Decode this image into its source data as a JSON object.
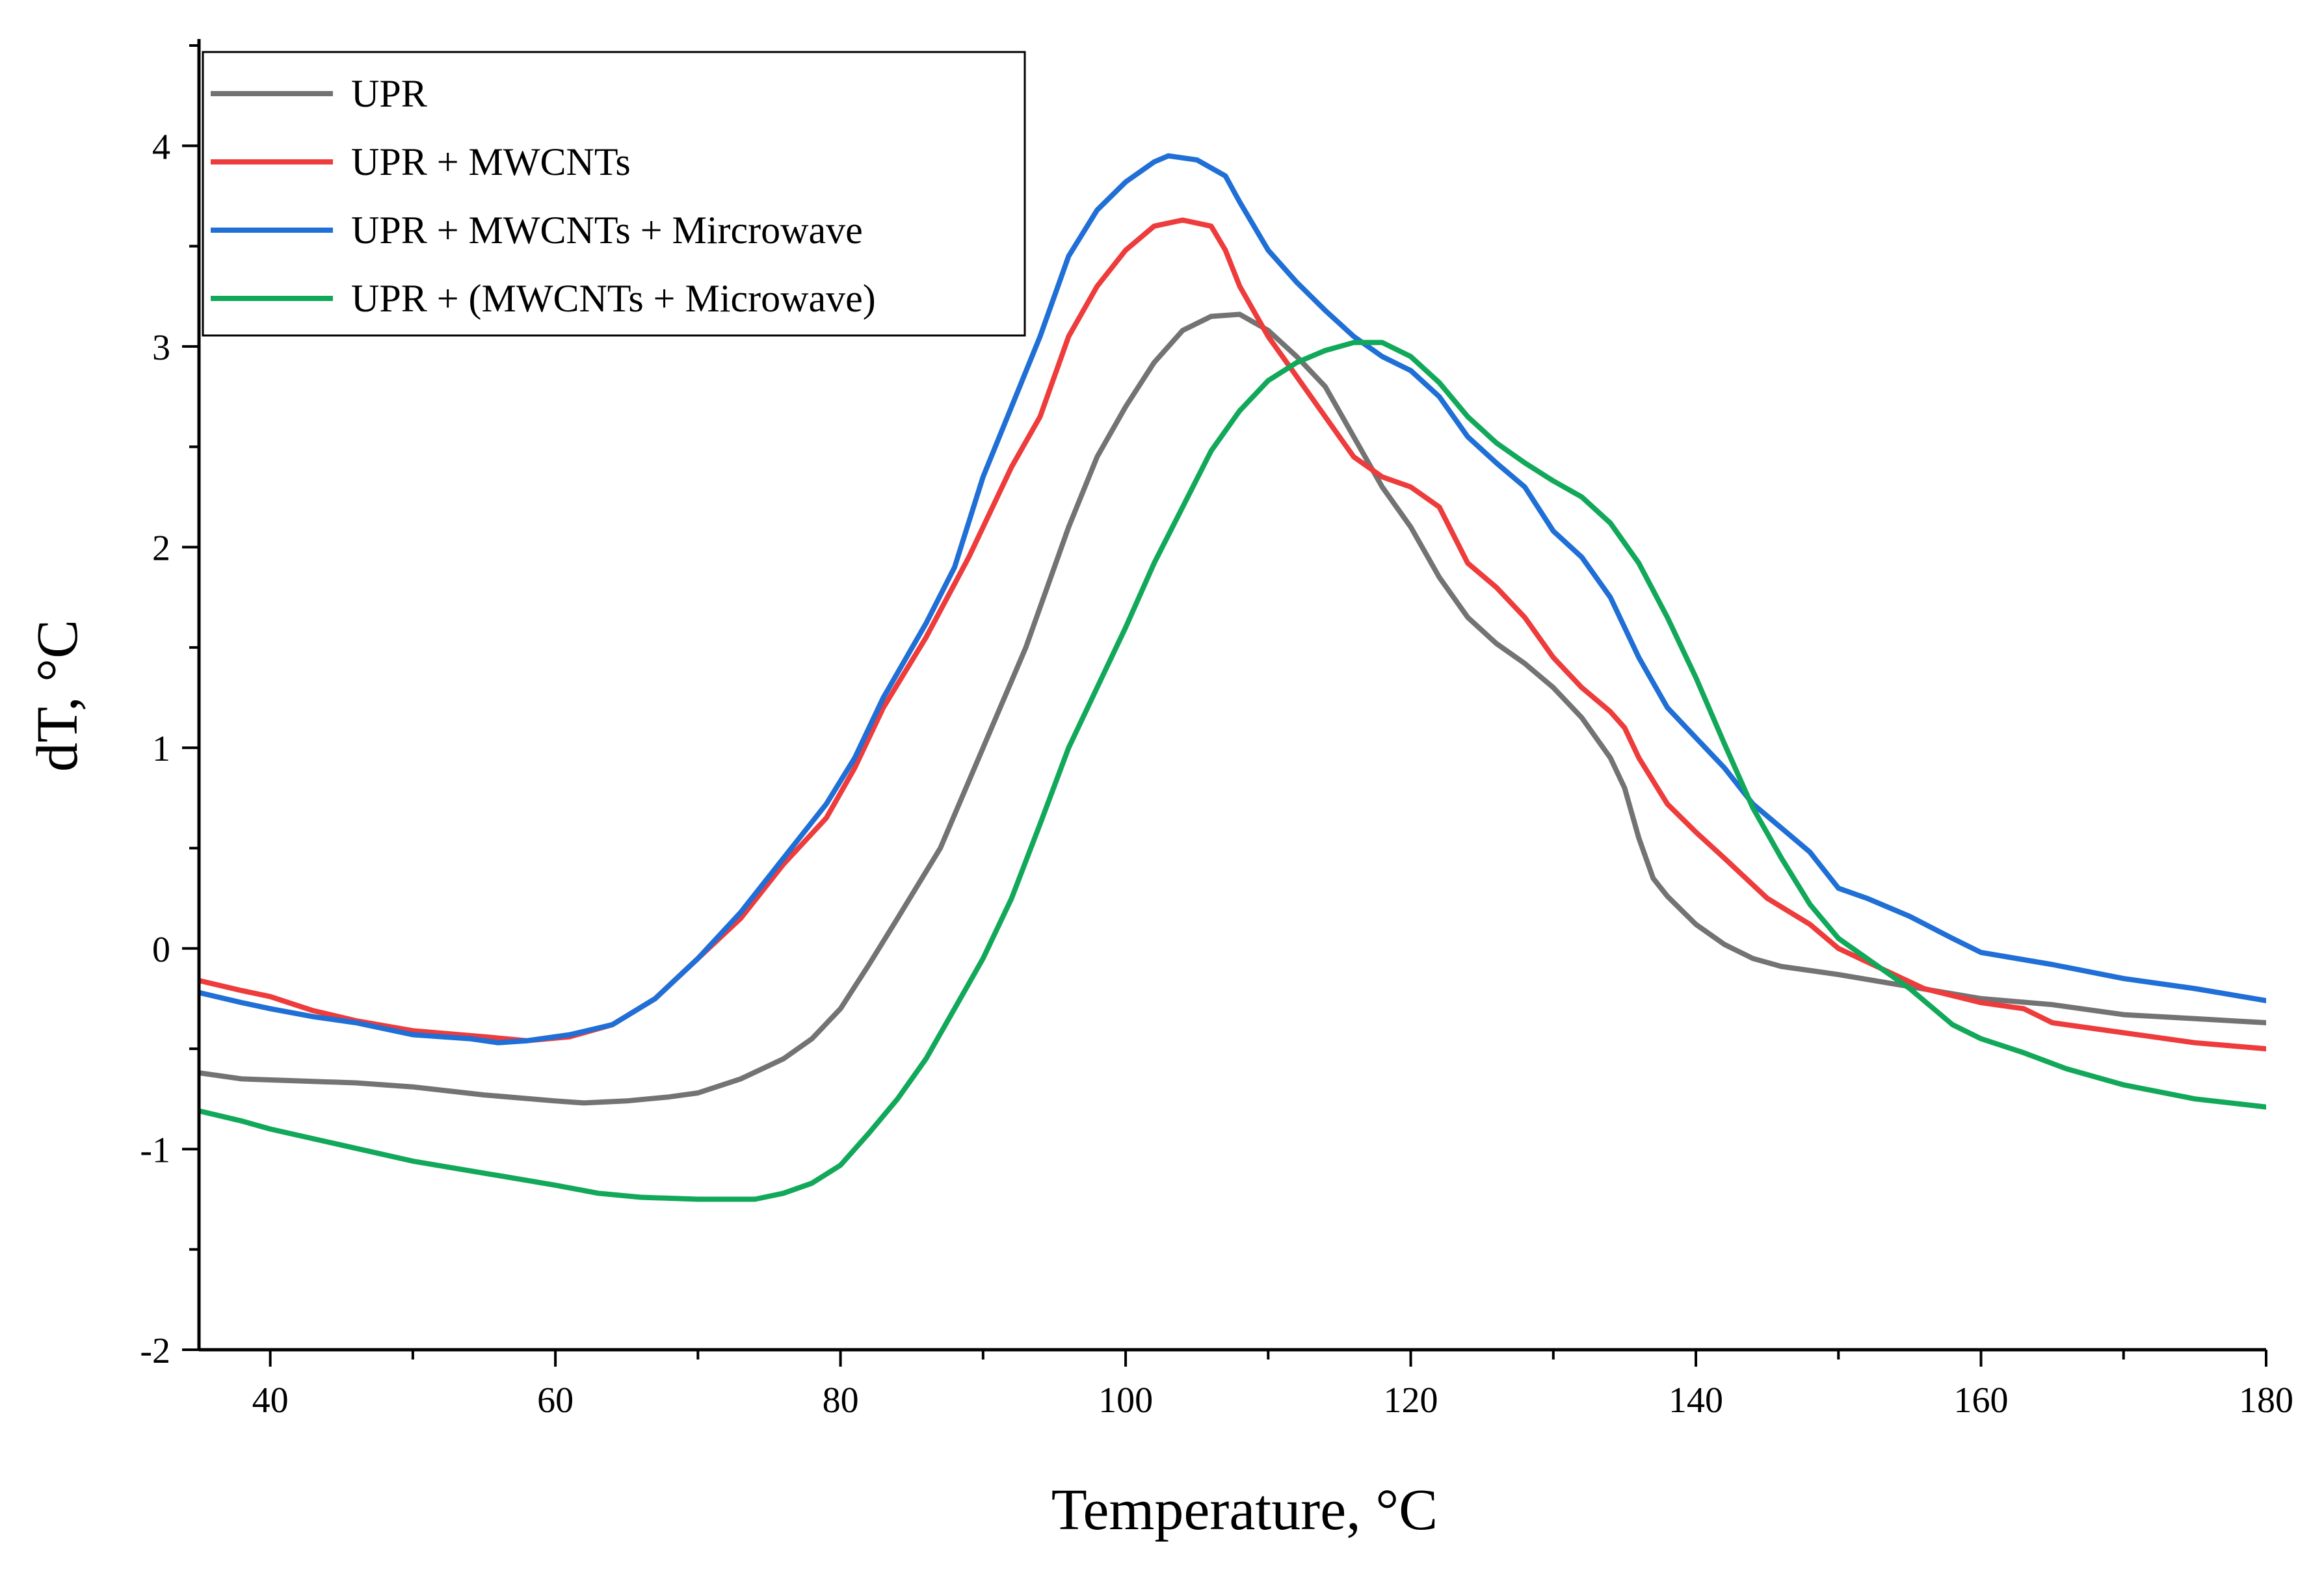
{
  "chart_data": {
    "type": "line",
    "title": "",
    "xlabel": "Temperature, °C",
    "ylabel": "dT, °C",
    "xlim": [
      35,
      180
    ],
    "ylim": [
      -2,
      4.5
    ],
    "xticks": [
      40,
      60,
      80,
      100,
      120,
      140,
      160,
      180
    ],
    "yticks": [
      -2,
      -1,
      0,
      1,
      2,
      3,
      4
    ],
    "legend_position": "top-left",
    "series": [
      {
        "name": "UPR",
        "color": "#737373",
        "points": [
          [
            35,
            -0.62
          ],
          [
            38,
            -0.65
          ],
          [
            42,
            -0.66
          ],
          [
            46,
            -0.67
          ],
          [
            50,
            -0.69
          ],
          [
            55,
            -0.73
          ],
          [
            60,
            -0.76
          ],
          [
            62,
            -0.77
          ],
          [
            65,
            -0.76
          ],
          [
            68,
            -0.74
          ],
          [
            70,
            -0.72
          ],
          [
            73,
            -0.65
          ],
          [
            76,
            -0.55
          ],
          [
            78,
            -0.45
          ],
          [
            80,
            -0.3
          ],
          [
            82,
            -0.08
          ],
          [
            84,
            0.15
          ],
          [
            87,
            0.5
          ],
          [
            90,
            1.0
          ],
          [
            93,
            1.5
          ],
          [
            96,
            2.1
          ],
          [
            98,
            2.45
          ],
          [
            100,
            2.7
          ],
          [
            102,
            2.92
          ],
          [
            104,
            3.08
          ],
          [
            106,
            3.15
          ],
          [
            108,
            3.16
          ],
          [
            110,
            3.08
          ],
          [
            112,
            2.95
          ],
          [
            114,
            2.8
          ],
          [
            116,
            2.55
          ],
          [
            118,
            2.3
          ],
          [
            120,
            2.1
          ],
          [
            122,
            1.85
          ],
          [
            124,
            1.65
          ],
          [
            126,
            1.52
          ],
          [
            128,
            1.42
          ],
          [
            130,
            1.3
          ],
          [
            132,
            1.15
          ],
          [
            134,
            0.95
          ],
          [
            135,
            0.8
          ],
          [
            136,
            0.55
          ],
          [
            137,
            0.35
          ],
          [
            138,
            0.26
          ],
          [
            140,
            0.12
          ],
          [
            142,
            0.02
          ],
          [
            144,
            -0.05
          ],
          [
            146,
            -0.09
          ],
          [
            150,
            -0.13
          ],
          [
            155,
            -0.19
          ],
          [
            160,
            -0.25
          ],
          [
            165,
            -0.28
          ],
          [
            170,
            -0.33
          ],
          [
            175,
            -0.35
          ],
          [
            180,
            -0.37
          ]
        ]
      },
      {
        "name": "UPR + MWCNTs",
        "color": "#ee3b3b",
        "points": [
          [
            35,
            -0.16
          ],
          [
            38,
            -0.21
          ],
          [
            40,
            -0.24
          ],
          [
            43,
            -0.31
          ],
          [
            46,
            -0.36
          ],
          [
            50,
            -0.41
          ],
          [
            55,
            -0.44
          ],
          [
            58,
            -0.46
          ],
          [
            61,
            -0.44
          ],
          [
            64,
            -0.38
          ],
          [
            67,
            -0.25
          ],
          [
            70,
            -0.05
          ],
          [
            73,
            0.15
          ],
          [
            76,
            0.42
          ],
          [
            79,
            0.65
          ],
          [
            81,
            0.9
          ],
          [
            83,
            1.2
          ],
          [
            86,
            1.55
          ],
          [
            89,
            1.95
          ],
          [
            92,
            2.4
          ],
          [
            94,
            2.65
          ],
          [
            96,
            3.05
          ],
          [
            98,
            3.3
          ],
          [
            100,
            3.48
          ],
          [
            102,
            3.6
          ],
          [
            104,
            3.63
          ],
          [
            106,
            3.6
          ],
          [
            107,
            3.48
          ],
          [
            108,
            3.3
          ],
          [
            110,
            3.05
          ],
          [
            112,
            2.85
          ],
          [
            114,
            2.65
          ],
          [
            116,
            2.45
          ],
          [
            118,
            2.35
          ],
          [
            120,
            2.3
          ],
          [
            122,
            2.2
          ],
          [
            124,
            1.92
          ],
          [
            126,
            1.8
          ],
          [
            128,
            1.65
          ],
          [
            130,
            1.45
          ],
          [
            132,
            1.3
          ],
          [
            134,
            1.18
          ],
          [
            135,
            1.1
          ],
          [
            136,
            0.95
          ],
          [
            138,
            0.72
          ],
          [
            140,
            0.58
          ],
          [
            142,
            0.45
          ],
          [
            145,
            0.25
          ],
          [
            148,
            0.12
          ],
          [
            150,
            0.0
          ],
          [
            153,
            -0.1
          ],
          [
            156,
            -0.2
          ],
          [
            160,
            -0.27
          ],
          [
            163,
            -0.3
          ],
          [
            165,
            -0.37
          ],
          [
            170,
            -0.42
          ],
          [
            175,
            -0.47
          ],
          [
            180,
            -0.5
          ]
        ]
      },
      {
        "name": "UPR + MWCNTs + Mircrowave",
        "color": "#1f6fd6",
        "points": [
          [
            35,
            -0.22
          ],
          [
            38,
            -0.27
          ],
          [
            40,
            -0.3
          ],
          [
            43,
            -0.34
          ],
          [
            46,
            -0.37
          ],
          [
            50,
            -0.43
          ],
          [
            54,
            -0.45
          ],
          [
            56,
            -0.47
          ],
          [
            58,
            -0.46
          ],
          [
            61,
            -0.43
          ],
          [
            64,
            -0.38
          ],
          [
            67,
            -0.25
          ],
          [
            70,
            -0.05
          ],
          [
            73,
            0.18
          ],
          [
            76,
            0.45
          ],
          [
            79,
            0.72
          ],
          [
            81,
            0.95
          ],
          [
            83,
            1.25
          ],
          [
            86,
            1.62
          ],
          [
            88,
            1.9
          ],
          [
            90,
            2.35
          ],
          [
            92,
            2.7
          ],
          [
            94,
            3.05
          ],
          [
            96,
            3.45
          ],
          [
            98,
            3.68
          ],
          [
            100,
            3.82
          ],
          [
            102,
            3.92
          ],
          [
            103,
            3.95
          ],
          [
            105,
            3.93
          ],
          [
            107,
            3.85
          ],
          [
            108,
            3.72
          ],
          [
            110,
            3.48
          ],
          [
            112,
            3.32
          ],
          [
            114,
            3.18
          ],
          [
            116,
            3.05
          ],
          [
            118,
            2.95
          ],
          [
            120,
            2.88
          ],
          [
            122,
            2.75
          ],
          [
            124,
            2.55
          ],
          [
            126,
            2.42
          ],
          [
            128,
            2.3
          ],
          [
            130,
            2.08
          ],
          [
            132,
            1.95
          ],
          [
            134,
            1.75
          ],
          [
            136,
            1.45
          ],
          [
            138,
            1.2
          ],
          [
            140,
            1.05
          ],
          [
            142,
            0.9
          ],
          [
            144,
            0.72
          ],
          [
            146,
            0.6
          ],
          [
            148,
            0.48
          ],
          [
            150,
            0.3
          ],
          [
            152,
            0.25
          ],
          [
            155,
            0.16
          ],
          [
            158,
            0.05
          ],
          [
            160,
            -0.02
          ],
          [
            165,
            -0.08
          ],
          [
            170,
            -0.15
          ],
          [
            175,
            -0.2
          ],
          [
            180,
            -0.26
          ]
        ]
      },
      {
        "name": "UPR + (MWCNTs + Microwave)",
        "color": "#12a85a",
        "points": [
          [
            35,
            -0.81
          ],
          [
            38,
            -0.86
          ],
          [
            40,
            -0.9
          ],
          [
            45,
            -0.98
          ],
          [
            50,
            -1.06
          ],
          [
            55,
            -1.12
          ],
          [
            60,
            -1.18
          ],
          [
            63,
            -1.22
          ],
          [
            66,
            -1.24
          ],
          [
            70,
            -1.25
          ],
          [
            74,
            -1.25
          ],
          [
            76,
            -1.22
          ],
          [
            78,
            -1.17
          ],
          [
            80,
            -1.08
          ],
          [
            82,
            -0.92
          ],
          [
            84,
            -0.75
          ],
          [
            86,
            -0.55
          ],
          [
            88,
            -0.3
          ],
          [
            90,
            -0.05
          ],
          [
            92,
            0.25
          ],
          [
            94,
            0.62
          ],
          [
            96,
            1.0
          ],
          [
            98,
            1.3
          ],
          [
            100,
            1.6
          ],
          [
            102,
            1.92
          ],
          [
            104,
            2.2
          ],
          [
            106,
            2.48
          ],
          [
            108,
            2.68
          ],
          [
            110,
            2.83
          ],
          [
            112,
            2.92
          ],
          [
            114,
            2.98
          ],
          [
            116,
            3.02
          ],
          [
            118,
            3.02
          ],
          [
            120,
            2.95
          ],
          [
            122,
            2.82
          ],
          [
            124,
            2.65
          ],
          [
            126,
            2.52
          ],
          [
            128,
            2.42
          ],
          [
            130,
            2.33
          ],
          [
            132,
            2.25
          ],
          [
            134,
            2.12
          ],
          [
            136,
            1.92
          ],
          [
            138,
            1.65
          ],
          [
            140,
            1.35
          ],
          [
            142,
            1.02
          ],
          [
            144,
            0.7
          ],
          [
            146,
            0.45
          ],
          [
            148,
            0.22
          ],
          [
            150,
            0.05
          ],
          [
            152,
            -0.05
          ],
          [
            155,
            -0.2
          ],
          [
            158,
            -0.38
          ],
          [
            160,
            -0.45
          ],
          [
            163,
            -0.52
          ],
          [
            166,
            -0.6
          ],
          [
            170,
            -0.68
          ],
          [
            175,
            -0.75
          ],
          [
            180,
            -0.79
          ]
        ]
      }
    ]
  }
}
